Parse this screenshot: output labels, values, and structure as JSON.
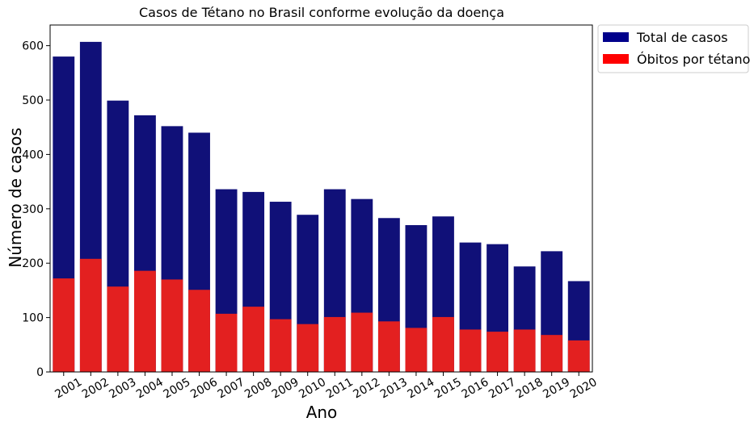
{
  "chart_data": {
    "type": "bar",
    "title": "Casos de Tétano no Brasil conforme evolução da doença",
    "xlabel": "Ano",
    "ylabel": "Número de casos",
    "categories": [
      "2001",
      "2002",
      "2003",
      "2004",
      "2005",
      "2006",
      "2007",
      "2008",
      "2009",
      "2010",
      "2011",
      "2012",
      "2013",
      "2014",
      "2015",
      "2016",
      "2017",
      "2018",
      "2019",
      "2020"
    ],
    "ylim": [
      0,
      638
    ],
    "yticks": [
      0,
      100,
      200,
      300,
      400,
      500,
      600
    ],
    "grid": false,
    "legend_position": "outside-top-right",
    "series": [
      {
        "name": "Total de casos",
        "color": "#101078",
        "legend_color": "#00008b",
        "values": [
          580,
          607,
          499,
          472,
          452,
          440,
          336,
          331,
          313,
          289,
          336,
          318,
          283,
          270,
          286,
          238,
          235,
          194,
          222,
          167
        ]
      },
      {
        "name": "Óbitos por tétano",
        "color": "#e32020",
        "legend_color": "#ff0000",
        "values": [
          172,
          208,
          157,
          186,
          170,
          151,
          107,
          120,
          97,
          88,
          101,
          109,
          93,
          81,
          101,
          78,
          74,
          78,
          68,
          58
        ]
      }
    ]
  }
}
